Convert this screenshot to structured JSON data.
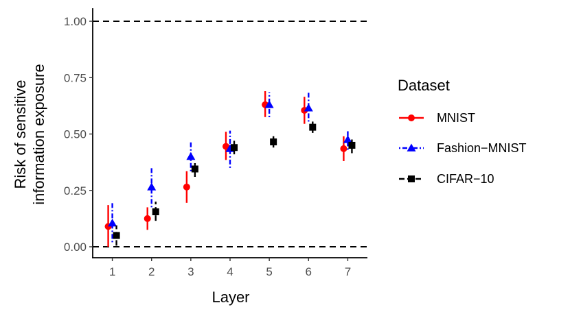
{
  "chart_data": {
    "type": "scatter",
    "xlabel": "Layer",
    "ylabel_lines": [
      "Risk of sensitive",
      "information exposure"
    ],
    "x": [
      1,
      2,
      3,
      4,
      5,
      6,
      7
    ],
    "x_tick_labels": [
      "1",
      "2",
      "3",
      "4",
      "5",
      "6",
      "7"
    ],
    "ylim": [
      0,
      1.05
    ],
    "y_ticks": [
      0.0,
      0.25,
      0.5,
      0.75,
      1.0
    ],
    "y_tick_labels": [
      "0.00",
      "0.25",
      "0.50",
      "0.75",
      "1.00"
    ],
    "reference_lines": [
      0.0,
      1.0
    ],
    "grid": false,
    "legend": {
      "title": "Dataset",
      "placement": "right"
    },
    "series": [
      {
        "name": "MNIST",
        "color": "#ff0000",
        "marker": "circle",
        "linestyle": "solid",
        "values": [
          0.09,
          0.125,
          0.265,
          0.445,
          0.63,
          0.605,
          0.435
        ],
        "lower": [
          0.0,
          0.075,
          0.195,
          0.385,
          0.575,
          0.545,
          0.38
        ],
        "upper": [
          0.185,
          0.175,
          0.335,
          0.51,
          0.69,
          0.665,
          0.49
        ]
      },
      {
        "name": "Fashion−MNIST",
        "color": "#0000ff",
        "marker": "triangle",
        "linestyle": "dotdash",
        "values": [
          0.105,
          0.265,
          0.4,
          0.435,
          0.63,
          0.615,
          0.475
        ],
        "lower": [
          0.02,
          0.175,
          0.335,
          0.35,
          0.575,
          0.555,
          0.43
        ],
        "upper": [
          0.195,
          0.355,
          0.465,
          0.515,
          0.685,
          0.69,
          0.52
        ]
      },
      {
        "name": "CIFAR−10",
        "color": "#000000",
        "marker": "square",
        "linestyle": "longdash",
        "values": [
          0.05,
          0.155,
          0.345,
          0.44,
          0.465,
          0.53,
          0.45
        ],
        "lower": [
          0.005,
          0.115,
          0.31,
          0.41,
          0.44,
          0.505,
          0.415
        ],
        "upper": [
          0.095,
          0.2,
          0.375,
          0.47,
          0.49,
          0.555,
          0.485
        ]
      }
    ]
  }
}
